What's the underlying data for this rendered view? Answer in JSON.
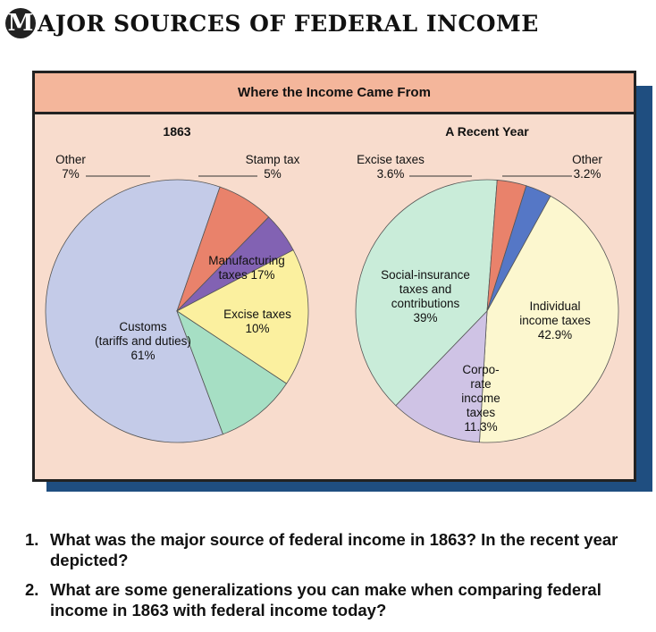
{
  "title": {
    "badge_letter": "M",
    "rest": "AJOR SOURCES OF FEDERAL INCOME"
  },
  "panel": {
    "header": "Where the Income Came From"
  },
  "chart_data": [
    {
      "type": "pie",
      "title": "1863",
      "slices": [
        {
          "label": "Customs (tariffs and duties)",
          "text_lines": [
            "Customs",
            "(tariffs and duties)",
            "61%"
          ],
          "value": 61,
          "color": "#c4cbe8"
        },
        {
          "label": "Other",
          "text_lines": [
            "Other",
            "7%"
          ],
          "value": 7,
          "color": "#e9826b"
        },
        {
          "label": "Stamp tax",
          "text_lines": [
            "Stamp tax",
            "5%"
          ],
          "value": 5,
          "color": "#8262b3"
        },
        {
          "label": "Manufacturing taxes",
          "text_lines": [
            "Manufacturing",
            "taxes  17%"
          ],
          "value": 17,
          "color": "#fbf09f"
        },
        {
          "label": "Excise taxes",
          "text_lines": [
            "Excise taxes",
            "10%"
          ],
          "value": 10,
          "color": "#a6dfc4"
        }
      ]
    },
    {
      "type": "pie",
      "title": "A Recent Year",
      "slices": [
        {
          "label": "Social-insurance taxes and contributions",
          "text_lines": [
            "Social-insurance",
            "taxes and",
            "contributions",
            "39%"
          ],
          "value": 39,
          "color": "#c9ecd9"
        },
        {
          "label": "Excise taxes",
          "text_lines": [
            "Excise taxes",
            "3.6%"
          ],
          "value": 3.6,
          "color": "#e9826b"
        },
        {
          "label": "Other",
          "text_lines": [
            "Other",
            "3.2%"
          ],
          "value": 3.2,
          "color": "#5577c6"
        },
        {
          "label": "Individual income taxes",
          "text_lines": [
            "Individual",
            "income taxes",
            "42.9%"
          ],
          "value": 42.9,
          "color": "#fcf7cf"
        },
        {
          "label": "Corporate income taxes",
          "text_lines": [
            "Corpo-",
            "rate",
            "income",
            "taxes",
            "11.3%"
          ],
          "value": 11.3,
          "color": "#cfc3e5"
        }
      ]
    }
  ],
  "questions": [
    {
      "number": "1.",
      "text": "What was the major source of federal income in 1863? In the recent year depicted?"
    },
    {
      "number": "2.",
      "text": "What are some generalizations you can make when comparing federal income in 1863 with federal income today?"
    }
  ]
}
